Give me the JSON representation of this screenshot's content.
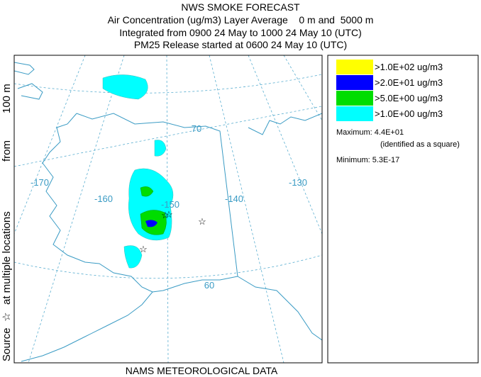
{
  "header": {
    "title": "NWS SMOKE FORECAST",
    "line1": "Air Concentration (ug/m3) Layer Average    0 m and  5000 m",
    "line2": "Integrated from 0900 24 May to 1000 24 May 10 (UTC)",
    "line3": "PM25 Release started at 0600 24 May 10 (UTC)"
  },
  "side_label": {
    "source": "Source",
    "locations": "at multiple locations",
    "from": "from",
    "height": "100 m"
  },
  "footer": "NAMS METEOROLOGICAL DATA",
  "legend": [
    {
      "label": ">1.0E+02 ug/m3",
      "color": "#ffff00"
    },
    {
      "label": ">2.0E+01 ug/m3",
      "color": "#0000ff"
    },
    {
      "label": ">5.0E+00 ug/m3",
      "color": "#00dd00"
    },
    {
      "label": ">1.0E+00 ug/m3",
      "color": "#00ffff"
    }
  ],
  "stats": {
    "maximum": "Maximum: 4.4E+01",
    "maximum_note": "(identified as a square)",
    "minimum": "Minimum: 5.3E-17"
  },
  "map": {
    "labels": [
      "70",
      "-170",
      "-160",
      "-150",
      "-140",
      "-130",
      "60"
    ]
  }
}
